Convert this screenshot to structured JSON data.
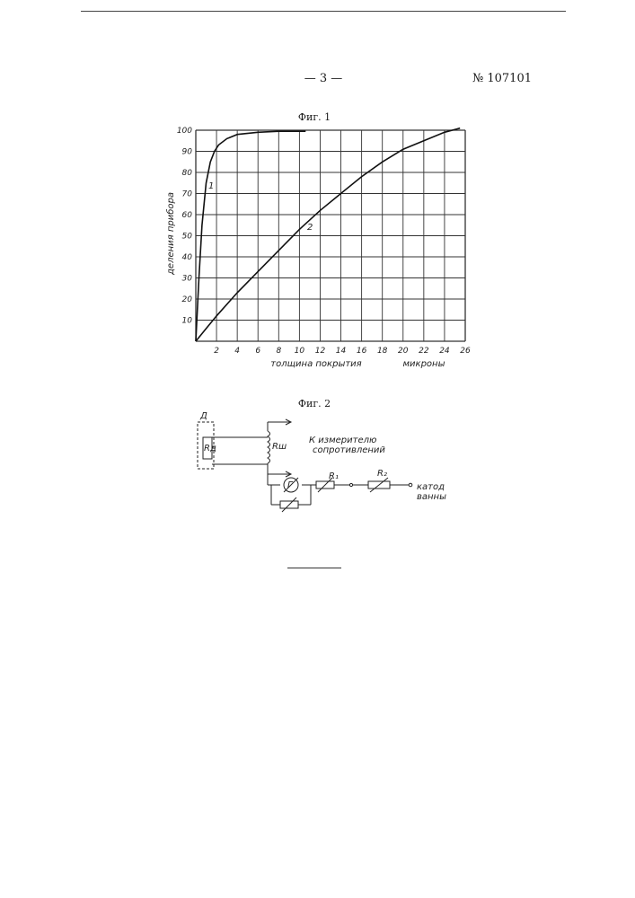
{
  "header": {
    "page_number": "— 3 —",
    "document_number": "№ 107101"
  },
  "figure1": {
    "caption": "Фиг. 1",
    "x_tick_labels": [
      "2",
      "4",
      "6",
      "8",
      "10",
      "12",
      "14",
      "16",
      "18",
      "20",
      "22",
      "24",
      "26"
    ],
    "y_tick_labels": [
      "10",
      "20",
      "30",
      "40",
      "50",
      "60",
      "70",
      "80",
      "90",
      "100"
    ],
    "ylabel": "деления прибора",
    "xlabel": "толщина покрытия",
    "xunit": "микроны",
    "curve1_label": "1",
    "curve2_label": "2"
  },
  "figure2": {
    "caption": "Фиг. 2",
    "sensor_label": "Д",
    "sensor_resistor_label": "Rд",
    "shunt_label": "Rш",
    "meter_label": "Г",
    "r1_label": "R₁",
    "r2_label": "R₂",
    "meter_text_line1": "К измерителю",
    "meter_text_line2": "сопротивлений",
    "cathode_line1": "катод",
    "cathode_line2": "ванны"
  },
  "chart_data": {
    "type": "line",
    "xlabel": "толщина покрытия",
    "ylabel": "деления прибора",
    "xlim": [
      0,
      26
    ],
    "ylim": [
      0,
      100
    ],
    "grid": true,
    "series": [
      {
        "name": "1",
        "x": [
          0,
          0.3,
          0.6,
          1.0,
          1.4,
          1.8,
          2.2,
          3.0,
          4.0,
          6.0,
          8.0,
          10.6
        ],
        "values": [
          0,
          30,
          55,
          75,
          85,
          90,
          93,
          96,
          98,
          99,
          99.5,
          99.5
        ]
      },
      {
        "name": "2",
        "x": [
          0,
          1,
          2,
          4,
          6,
          8,
          10,
          12,
          14,
          16,
          18,
          20,
          22,
          24,
          25.5
        ],
        "values": [
          0,
          6,
          12,
          23,
          33,
          43,
          53,
          62,
          70,
          78,
          85,
          91,
          95,
          99,
          101
        ]
      }
    ]
  }
}
